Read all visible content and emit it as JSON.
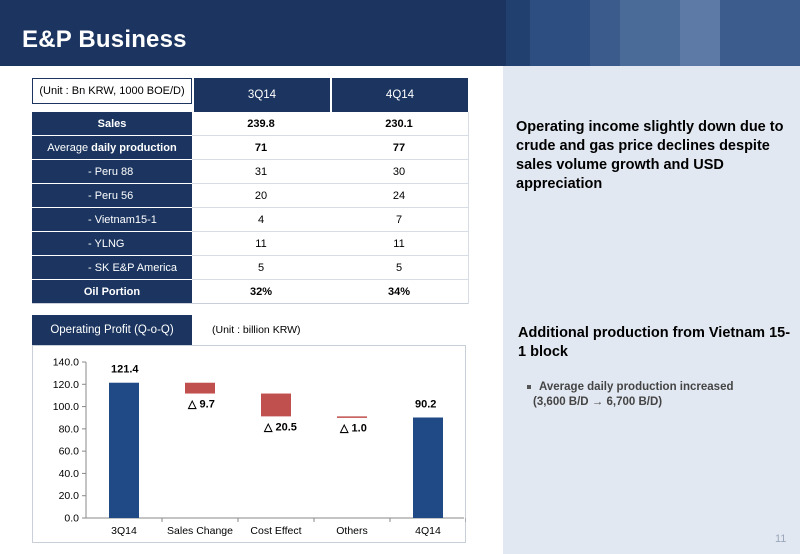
{
  "header": {
    "title": "E&P Business"
  },
  "table": {
    "unit_label": "(Unit : Bn KRW, 1000 BOE/D)",
    "columns": [
      "3Q14",
      "4Q14"
    ],
    "rows": [
      {
        "label": "Sales",
        "v1": "239.8",
        "v2": "230.1"
      },
      {
        "label_prefix": "Average ",
        "label_bold": "daily production",
        "v1": "71",
        "v2": "77"
      },
      {
        "label": "- Peru 88",
        "v1": "31",
        "v2": "30"
      },
      {
        "label": "- Peru 56",
        "v1": "20",
        "v2": "24"
      },
      {
        "label": "- Vietnam15-1",
        "v1": "4",
        "v2": "7"
      },
      {
        "label": "- YLNG",
        "v1": "11",
        "v2": "11"
      },
      {
        "label": "- SK E&P America",
        "v1": "5",
        "v2": "5"
      },
      {
        "label": "Oil Portion",
        "v1": "32%",
        "v2": "34%"
      }
    ]
  },
  "chart_section": {
    "tab_label": "Operating Profit (Q-o-Q)",
    "unit_label": "(Unit : billion KRW)"
  },
  "chart_data": {
    "type": "bar",
    "subtype": "waterfall",
    "categories": [
      "3Q14",
      "Sales Change",
      "Cost Effect",
      "Others",
      "4Q14"
    ],
    "values": [
      121.4,
      -9.7,
      -20.5,
      -1.0,
      90.2
    ],
    "data_labels": [
      "121.4",
      "△ 9.7",
      "△ 20.5",
      "△ 1.0",
      "90.2"
    ],
    "ylim": [
      0,
      140
    ],
    "yticks": [
      "0.0",
      "20.0",
      "40.0",
      "60.0",
      "80.0",
      "100.0",
      "120.0",
      "140.0"
    ],
    "grid": false,
    "colors": {
      "total": "#1f4a86",
      "decrease": "#c0504d"
    }
  },
  "right_panel": {
    "headline1": "Operating income slightly down due to crude and gas price declines despite sales volume growth and USD appreciation",
    "headline2": "Additional production from Vietnam 15-1 block",
    "bullet_line1": "Average daily production increased",
    "bullet_line2": "(3,600 B/D → 6,700 B/D)"
  },
  "page_number": "11",
  "colors": {
    "navy": "#1b3560",
    "panel": "#e2e8f2"
  }
}
